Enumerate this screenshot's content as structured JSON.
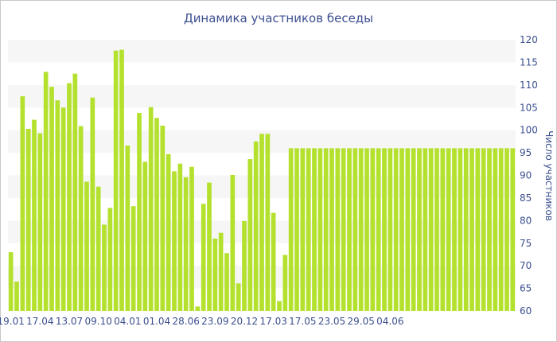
{
  "chart_data": {
    "type": "bar",
    "title": "Динамика участников беседы",
    "ylabel": "Число участников",
    "xlabel": "",
    "ylim": [
      60,
      120
    ],
    "yticks": [
      60,
      65,
      70,
      75,
      80,
      85,
      90,
      95,
      100,
      105,
      110,
      115,
      120
    ],
    "y_axis_side": "right",
    "grid": "horizontal-bands",
    "legend": "none",
    "bar_color": "#b4e12e",
    "band_color": "#f6f6f6",
    "text_color": "#3c4f8f",
    "x_tick_labels": [
      {
        "label": "19.01",
        "index": 0
      },
      {
        "label": "17.04",
        "index": 5
      },
      {
        "label": "13.07",
        "index": 10
      },
      {
        "label": "09.10",
        "index": 15
      },
      {
        "label": "04.01",
        "index": 20
      },
      {
        "label": "01.04",
        "index": 25
      },
      {
        "label": "28.06",
        "index": 30
      },
      {
        "label": "23.09",
        "index": 35
      },
      {
        "label": "20.12",
        "index": 40
      },
      {
        "label": "17.03",
        "index": 45
      },
      {
        "label": "17.05",
        "index": 50
      },
      {
        "label": "23.05",
        "index": 55
      },
      {
        "label": "29.05",
        "index": 60
      },
      {
        "label": "04.06",
        "index": 65
      }
    ],
    "values": [
      73,
      66.5,
      107.5,
      100.3,
      102.3,
      99.3,
      112.9,
      109.6,
      106.6,
      105,
      110.4,
      112.5,
      100.9,
      88.6,
      107.2,
      87.5,
      79.1,
      82.8,
      117.6,
      117.8,
      96.6,
      83.2,
      103.8,
      93,
      105.1,
      102.7,
      101,
      94.7,
      90.9,
      92.6,
      89.6,
      91.9,
      61,
      83.7,
      88.4,
      76,
      77.3,
      72.8,
      90.1,
      66.1,
      79.9,
      93.6,
      97.5,
      99.2,
      99.2,
      81.7,
      62.2,
      72.4,
      96,
      96,
      96,
      96,
      96,
      96,
      96,
      96,
      96,
      96,
      96,
      96,
      96,
      96,
      96,
      96,
      96,
      96,
      96,
      96,
      96,
      96,
      96,
      96,
      96,
      96,
      96,
      96,
      96,
      96,
      96,
      96,
      96,
      96,
      96,
      96,
      96,
      96,
      96
    ]
  }
}
